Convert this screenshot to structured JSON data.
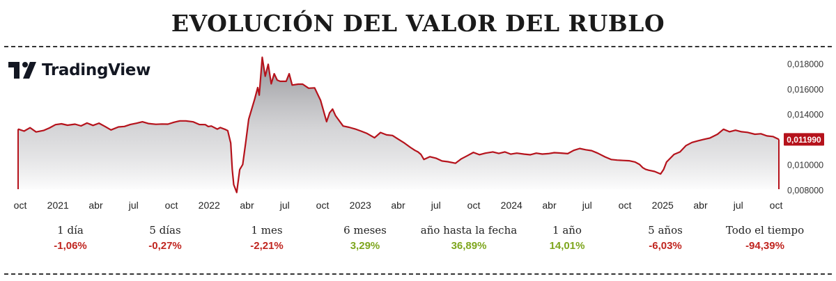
{
  "title": "EVOLUCIÓN DEL VALOR DEL RUBLO",
  "logo": {
    "icon": "tradingview-logo-icon",
    "text": "TradingView"
  },
  "colors": {
    "line": "#b5121b",
    "positive": "#7ea61e",
    "negative": "#c0251f",
    "area_top": "#8e8e93",
    "area_bottom": "#ffffff"
  },
  "chart_data": {
    "type": "area",
    "title": "EVOLUCIÓN DEL VALOR DEL RUBLO",
    "xlabel": "",
    "ylabel": "",
    "x_ticks": [
      "oct",
      "2021",
      "abr",
      "jul",
      "oct",
      "2022",
      "abr",
      "jul",
      "oct",
      "2023",
      "abr",
      "jul",
      "oct",
      "2024",
      "abr",
      "jul",
      "oct",
      "2025",
      "abr",
      "jul",
      "oct"
    ],
    "y_ticks": [
      "0,008000",
      "0,010000",
      "0,012000",
      "0,014000",
      "0,016000",
      "0,018000"
    ],
    "ylim": [
      0.0076,
      0.0188
    ],
    "xlim": [
      2020.75,
      2025.83
    ],
    "grid": false,
    "current_value": 0.01199,
    "current_value_label": "0,011990",
    "series": [
      {
        "values": [
          [
            2020.75,
            0.01281
          ],
          [
            2020.79,
            0.01265
          ],
          [
            2020.83,
            0.01292
          ],
          [
            2020.87,
            0.01258
          ],
          [
            2020.92,
            0.0127
          ],
          [
            2020.96,
            0.0129
          ],
          [
            2021.0,
            0.01316
          ],
          [
            2021.04,
            0.01323
          ],
          [
            2021.08,
            0.01312
          ],
          [
            2021.13,
            0.0132
          ],
          [
            2021.17,
            0.01306
          ],
          [
            2021.21,
            0.01329
          ],
          [
            2021.25,
            0.0131
          ],
          [
            2021.29,
            0.01328
          ],
          [
            2021.33,
            0.01302
          ],
          [
            2021.37,
            0.01274
          ],
          [
            2021.42,
            0.01298
          ],
          [
            2021.46,
            0.01302
          ],
          [
            2021.5,
            0.01318
          ],
          [
            2021.54,
            0.01327
          ],
          [
            2021.58,
            0.01339
          ],
          [
            2021.62,
            0.01325
          ],
          [
            2021.67,
            0.01319
          ],
          [
            2021.71,
            0.01321
          ],
          [
            2021.75,
            0.0132
          ],
          [
            2021.79,
            0.01335
          ],
          [
            2021.83,
            0.01346
          ],
          [
            2021.87,
            0.01346
          ],
          [
            2021.92,
            0.01338
          ],
          [
            2021.96,
            0.01317
          ],
          [
            2022.0,
            0.01316
          ],
          [
            2022.02,
            0.01301
          ],
          [
            2022.04,
            0.01305
          ],
          [
            2022.08,
            0.01281
          ],
          [
            2022.1,
            0.01293
          ],
          [
            2022.13,
            0.0128
          ],
          [
            2022.15,
            0.01268
          ],
          [
            2022.17,
            0.0117
          ],
          [
            2022.18,
            0.0096
          ],
          [
            2022.19,
            0.0084
          ],
          [
            2022.21,
            0.00778
          ],
          [
            2022.23,
            0.0096
          ],
          [
            2022.25,
            0.01
          ],
          [
            2022.27,
            0.01175
          ],
          [
            2022.29,
            0.0136
          ],
          [
            2022.33,
            0.0152
          ],
          [
            2022.35,
            0.0161
          ],
          [
            2022.36,
            0.0155
          ],
          [
            2022.38,
            0.0185
          ],
          [
            2022.4,
            0.017
          ],
          [
            2022.42,
            0.01795
          ],
          [
            2022.44,
            0.0164
          ],
          [
            2022.46,
            0.0172
          ],
          [
            2022.48,
            0.0167
          ],
          [
            2022.5,
            0.0166
          ],
          [
            2022.54,
            0.0166
          ],
          [
            2022.56,
            0.0172
          ],
          [
            2022.58,
            0.0163
          ],
          [
            2022.62,
            0.01637
          ],
          [
            2022.65,
            0.01637
          ],
          [
            2022.69,
            0.01605
          ],
          [
            2022.73,
            0.01608
          ],
          [
            2022.77,
            0.01508
          ],
          [
            2022.81,
            0.0134
          ],
          [
            2022.83,
            0.0141
          ],
          [
            2022.85,
            0.0144
          ],
          [
            2022.87,
            0.01387
          ],
          [
            2022.92,
            0.01305
          ],
          [
            2022.96,
            0.01295
          ],
          [
            2023.0,
            0.01282
          ],
          [
            2023.04,
            0.01265
          ],
          [
            2023.08,
            0.01246
          ],
          [
            2023.13,
            0.01212
          ],
          [
            2023.17,
            0.01254
          ],
          [
            2023.21,
            0.01235
          ],
          [
            2023.25,
            0.0123
          ],
          [
            2023.29,
            0.012
          ],
          [
            2023.33,
            0.0117
          ],
          [
            2023.37,
            0.01135
          ],
          [
            2023.4,
            0.01112
          ],
          [
            2023.42,
            0.011
          ],
          [
            2023.44,
            0.0108
          ],
          [
            2023.46,
            0.0104
          ],
          [
            2023.5,
            0.01062
          ],
          [
            2023.54,
            0.0105
          ],
          [
            2023.58,
            0.01028
          ],
          [
            2023.62,
            0.01022
          ],
          [
            2023.67,
            0.0101
          ],
          [
            2023.71,
            0.01045
          ],
          [
            2023.75,
            0.0107
          ],
          [
            2023.79,
            0.01096
          ],
          [
            2023.83,
            0.01078
          ],
          [
            2023.87,
            0.0109
          ],
          [
            2023.92,
            0.011
          ],
          [
            2023.96,
            0.01088
          ],
          [
            2024.0,
            0.011
          ],
          [
            2024.04,
            0.01082
          ],
          [
            2024.08,
            0.0109
          ],
          [
            2024.13,
            0.01082
          ],
          [
            2024.17,
            0.01077
          ],
          [
            2024.21,
            0.0109
          ],
          [
            2024.25,
            0.01083
          ],
          [
            2024.29,
            0.01086
          ],
          [
            2024.33,
            0.01094
          ],
          [
            2024.37,
            0.01091
          ],
          [
            2024.42,
            0.01086
          ],
          [
            2024.46,
            0.01112
          ],
          [
            2024.5,
            0.01127
          ],
          [
            2024.54,
            0.01117
          ],
          [
            2024.58,
            0.0111
          ],
          [
            2024.62,
            0.0109
          ],
          [
            2024.67,
            0.0106
          ],
          [
            2024.71,
            0.0104
          ],
          [
            2024.75,
            0.01035
          ],
          [
            2024.79,
            0.01032
          ],
          [
            2024.83,
            0.0103
          ],
          [
            2024.87,
            0.0102
          ],
          [
            2024.9,
            0.01
          ],
          [
            2024.92,
            0.00976
          ],
          [
            2024.94,
            0.00962
          ],
          [
            2024.96,
            0.00955
          ],
          [
            2025.0,
            0.00945
          ],
          [
            2025.04,
            0.00925
          ],
          [
            2025.06,
            0.0096
          ],
          [
            2025.08,
            0.0102
          ],
          [
            2025.13,
            0.0108
          ],
          [
            2025.17,
            0.011
          ],
          [
            2025.21,
            0.0115
          ],
          [
            2025.25,
            0.01175
          ],
          [
            2025.29,
            0.01188
          ],
          [
            2025.33,
            0.012
          ],
          [
            2025.37,
            0.0121
          ],
          [
            2025.42,
            0.0124
          ],
          [
            2025.46,
            0.0128
          ],
          [
            2025.5,
            0.0126
          ],
          [
            2025.54,
            0.01272
          ],
          [
            2025.58,
            0.0126
          ],
          [
            2025.62,
            0.01255
          ],
          [
            2025.67,
            0.0124
          ],
          [
            2025.71,
            0.01244
          ],
          [
            2025.75,
            0.01227
          ],
          [
            2025.79,
            0.01222
          ],
          [
            2025.83,
            0.01199
          ]
        ]
      }
    ]
  },
  "stats": [
    {
      "label": "1 día",
      "value": "-1,06%",
      "trend": "negative"
    },
    {
      "label": "5 días",
      "value": "-0,27%",
      "trend": "negative"
    },
    {
      "label": "1 mes",
      "value": "-2,21%",
      "trend": "negative"
    },
    {
      "label": "6 meses",
      "value": "3,29%",
      "trend": "positive"
    },
    {
      "label": "año hasta la fecha",
      "value": "36,89%",
      "trend": "positive"
    },
    {
      "label": "1 año",
      "value": "14,01%",
      "trend": "positive"
    },
    {
      "label": "5 años",
      "value": "-6,03%",
      "trend": "negative"
    },
    {
      "label": "Todo el tiempo",
      "value": "-94,39%",
      "trend": "negative"
    }
  ]
}
